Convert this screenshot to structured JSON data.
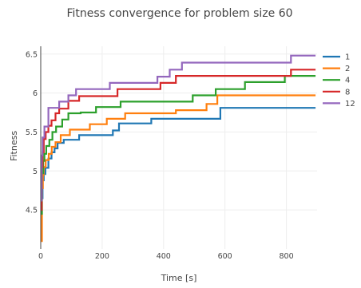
{
  "chart_data": {
    "type": "line",
    "line_shape": "step",
    "title": "Fitness convergence for problem size 60",
    "xlabel": "Time [s]",
    "ylabel": "Fitness",
    "xlim": [
      0,
      900
    ],
    "ylim": [
      4.0,
      6.6
    ],
    "x_ticks": [
      0,
      200,
      400,
      600,
      800
    ],
    "y_ticks": [
      4.5,
      5,
      5.5,
      6,
      6.5
    ],
    "grid": true,
    "legend_position": "top-right",
    "series": [
      {
        "name": "1",
        "color": "#1f77b4",
        "x": [
          0,
          3,
          6,
          10,
          15,
          25,
          35,
          45,
          55,
          75,
          125,
          235,
          255,
          360,
          585,
          895
        ],
        "y": [
          4.13,
          4.65,
          4.88,
          4.96,
          5.04,
          5.16,
          5.24,
          5.29,
          5.36,
          5.4,
          5.46,
          5.52,
          5.61,
          5.67,
          5.81,
          5.81
        ]
      },
      {
        "name": "2",
        "color": "#ff7f0e",
        "x": [
          0,
          4,
          7,
          10,
          16,
          26,
          36,
          48,
          65,
          95,
          160,
          215,
          275,
          440,
          540,
          575,
          895
        ],
        "y": [
          4.1,
          4.78,
          4.95,
          5.05,
          5.14,
          5.22,
          5.31,
          5.37,
          5.46,
          5.53,
          5.6,
          5.67,
          5.74,
          5.78,
          5.86,
          5.97,
          5.97
        ]
      },
      {
        "name": "4",
        "color": "#2ca02c",
        "x": [
          0,
          4,
          8,
          12,
          18,
          28,
          38,
          50,
          70,
          90,
          130,
          180,
          260,
          495,
          570,
          665,
          795,
          895
        ],
        "y": [
          4.45,
          4.97,
          5.13,
          5.22,
          5.32,
          5.4,
          5.5,
          5.57,
          5.66,
          5.74,
          5.75,
          5.82,
          5.89,
          5.97,
          6.05,
          6.14,
          6.22,
          6.22
        ]
      },
      {
        "name": "8",
        "color": "#d62728",
        "x": [
          0,
          3,
          6,
          10,
          16,
          25,
          35,
          48,
          60,
          90,
          125,
          250,
          390,
          440,
          815,
          895
        ],
        "y": [
          4.5,
          5.05,
          5.24,
          5.41,
          5.5,
          5.58,
          5.65,
          5.74,
          5.8,
          5.9,
          5.96,
          6.05,
          6.13,
          6.22,
          6.3,
          6.3
        ]
      },
      {
        "name": "12",
        "color": "#9467bd",
        "x": [
          0,
          3,
          6,
          12,
          25,
          60,
          90,
          115,
          225,
          380,
          420,
          460,
          815,
          895
        ],
        "y": [
          4.62,
          5.2,
          5.43,
          5.57,
          5.81,
          5.89,
          5.97,
          6.05,
          6.13,
          6.21,
          6.3,
          6.39,
          6.48,
          6.48
        ]
      }
    ]
  }
}
